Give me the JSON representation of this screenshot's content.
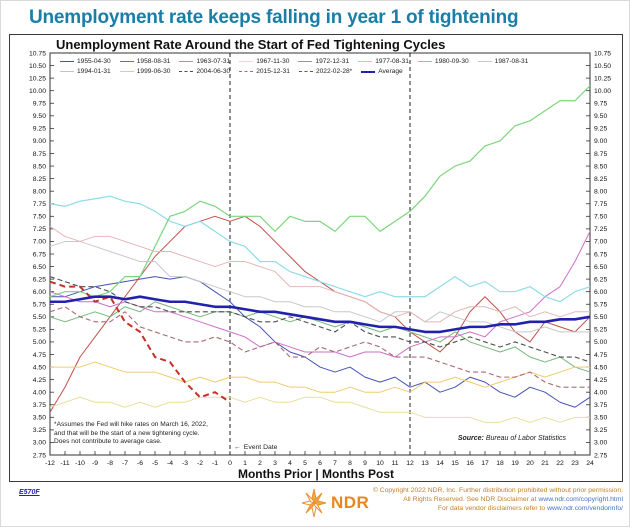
{
  "header": {
    "title": "Unemployment rate keeps falling in year 1 of tightening",
    "accent_color": "#1a7ea6"
  },
  "chart": {
    "title": "Unemployment Rate Around the Start of Fed Tightening Cycles",
    "footnote": "*Assumes the Fed will hike rates on March 16, 2022,\nand that will be the start of a new tightening cycle.\nDoes not contribute to average case.",
    "source_label": "Source:",
    "source_text": "Bureau of Labor Statistics",
    "event_arrow": "←",
    "event_date_label": "Event Date",
    "xlabel": "Months Prior | Months Post"
  },
  "chart_data": {
    "type": "line",
    "x_range": [
      -12,
      24
    ],
    "x_tick_step": 1,
    "ylim": [
      2.75,
      10.75
    ],
    "y_tick_step": 0.25,
    "event_lines_x": [
      0,
      12
    ],
    "grid": false,
    "legend_position": "top-inside",
    "series": [
      {
        "name": "1955-04-30",
        "color": "#4553b4",
        "dash": false,
        "width": 1,
        "values": [
          5.9,
          5.9,
          6.0,
          6.1,
          6.15,
          6.2,
          6.25,
          6.3,
          6.25,
          6.3,
          6.2,
          6.0,
          5.8,
          5.5,
          5.3,
          5.0,
          4.8,
          4.7,
          4.5,
          4.4,
          4.5,
          4.3,
          4.2,
          4.3,
          4.1,
          4.2,
          4.0,
          4.1,
          4.3,
          4.2,
          4.0,
          3.9,
          4.1,
          4.0,
          3.8,
          3.7,
          3.9
        ]
      },
      {
        "name": "1958-08-31",
        "color": "#c0504a",
        "dash": false,
        "width": 1,
        "values": [
          3.6,
          4.1,
          4.7,
          5.1,
          5.5,
          5.9,
          6.3,
          6.7,
          7.0,
          7.3,
          7.4,
          7.5,
          7.4,
          7.5,
          7.3,
          7.0,
          6.7,
          6.4,
          6.2,
          6.0,
          5.9,
          5.8,
          5.6,
          5.5,
          5.2,
          5.0,
          4.8,
          5.1,
          5.6,
          5.9,
          5.6,
          5.2,
          5.0,
          5.4,
          5.3,
          5.2,
          5.5
        ]
      },
      {
        "name": "1963-07-31",
        "color": "#74b77a",
        "dash": false,
        "width": 1,
        "values": [
          5.5,
          5.4,
          5.5,
          5.6,
          5.5,
          5.7,
          5.6,
          5.8,
          5.7,
          5.6,
          5.5,
          5.6,
          5.6,
          5.5,
          5.6,
          5.5,
          5.4,
          5.5,
          5.4,
          5.3,
          5.4,
          5.3,
          5.2,
          5.3,
          5.2,
          5.1,
          5.0,
          5.2,
          5.0,
          4.9,
          4.8,
          4.9,
          4.7,
          4.6,
          4.7,
          4.5,
          4.4
        ]
      },
      {
        "name": "1967-11-30",
        "color": "#e9df9e",
        "dash": false,
        "width": 1,
        "values": [
          3.7,
          3.8,
          3.9,
          3.8,
          3.8,
          3.7,
          3.8,
          3.7,
          3.8,
          3.8,
          3.9,
          3.9,
          3.9,
          3.8,
          3.9,
          3.8,
          3.8,
          3.9,
          3.9,
          3.8,
          3.8,
          3.7,
          3.6,
          3.6,
          3.6,
          3.5,
          3.5,
          3.5,
          3.5,
          3.4,
          3.4,
          3.5,
          3.4,
          3.5,
          3.4,
          3.5,
          3.5
        ]
      },
      {
        "name": "1972-12-31",
        "color": "#cf6fc9",
        "dash": false,
        "width": 1,
        "values": [
          6.0,
          5.9,
          5.8,
          5.8,
          5.7,
          5.8,
          5.7,
          5.6,
          5.6,
          5.5,
          5.4,
          5.3,
          5.2,
          5.1,
          4.9,
          5.0,
          4.9,
          4.8,
          4.8,
          4.8,
          4.7,
          4.8,
          4.8,
          4.7,
          4.9,
          5.0,
          5.1,
          5.1,
          5.2,
          5.1,
          5.4,
          5.5,
          5.6,
          5.9,
          6.1,
          6.6,
          7.2
        ]
      },
      {
        "name": "1977-08-31",
        "color": "#8fdbe8",
        "dash": false,
        "width": 1.2,
        "values": [
          7.75,
          7.7,
          7.8,
          7.85,
          7.9,
          7.8,
          7.75,
          7.6,
          7.4,
          7.3,
          7.4,
          7.2,
          7.0,
          6.9,
          6.6,
          6.6,
          6.4,
          6.3,
          6.2,
          6.1,
          6.0,
          5.9,
          6.0,
          5.9,
          5.9,
          5.9,
          6.1,
          6.3,
          6.1,
          6.2,
          6.0,
          6.0,
          6.1,
          5.9,
          5.8,
          6.0,
          6.1
        ]
      },
      {
        "name": "1980-09-30",
        "color": "#7bd67b",
        "dash": false,
        "width": 1.2,
        "values": [
          5.9,
          6.0,
          6.0,
          5.9,
          6.0,
          6.3,
          6.3,
          6.9,
          7.5,
          7.6,
          7.8,
          7.7,
          7.5,
          7.5,
          7.5,
          7.2,
          7.5,
          7.4,
          7.4,
          7.2,
          7.5,
          7.5,
          7.2,
          7.4,
          7.6,
          7.9,
          8.3,
          8.5,
          8.6,
          8.9,
          9.0,
          9.3,
          9.4,
          9.6,
          9.8,
          9.8,
          10.1
        ]
      },
      {
        "name": "1987-08-31",
        "color": "#c6c8ca",
        "dash": false,
        "width": 1,
        "values": [
          6.9,
          7.0,
          7.0,
          6.9,
          6.8,
          6.7,
          6.6,
          6.6,
          6.3,
          6.3,
          6.2,
          6.1,
          6.0,
          5.9,
          5.9,
          5.8,
          5.8,
          5.7,
          5.7,
          5.6,
          5.6,
          5.5,
          5.4,
          5.6,
          5.6,
          5.4,
          5.6,
          5.5,
          5.4,
          5.4,
          5.3,
          5.2,
          5.2,
          5.3,
          5.2,
          5.2,
          5.2
        ]
      },
      {
        "name": "1994-01-31",
        "color": "#e3b7b4",
        "dash": false,
        "width": 1,
        "values": [
          7.3,
          7.1,
          7.0,
          7.1,
          7.1,
          7.0,
          6.9,
          6.8,
          6.8,
          6.7,
          6.6,
          6.5,
          6.6,
          6.6,
          6.5,
          6.4,
          6.1,
          6.1,
          6.1,
          6.0,
          5.9,
          5.8,
          5.6,
          5.5,
          5.6,
          5.4,
          5.4,
          5.6,
          5.7,
          5.7,
          5.6,
          5.7,
          5.5,
          5.6,
          5.5,
          5.6,
          5.6
        ]
      },
      {
        "name": "1999-06-30",
        "color": "#f0cb70",
        "dash": false,
        "width": 1,
        "values": [
          4.5,
          4.5,
          4.5,
          4.6,
          4.5,
          4.4,
          4.4,
          4.4,
          4.3,
          4.2,
          4.3,
          4.2,
          4.3,
          4.3,
          4.2,
          4.2,
          4.1,
          4.1,
          4.0,
          4.0,
          4.1,
          4.0,
          4.0,
          4.1,
          4.0,
          4.2,
          4.2,
          4.3,
          4.2,
          4.1,
          4.2,
          4.3,
          4.4,
          4.3,
          4.4,
          4.5,
          4.5
        ]
      },
      {
        "name": "2004-06-30",
        "color": "#4d4d49",
        "dash": true,
        "width": 1.1,
        "values": [
          6.3,
          6.2,
          6.1,
          6.1,
          6.0,
          5.8,
          5.7,
          5.7,
          5.6,
          5.6,
          5.6,
          5.6,
          5.6,
          5.5,
          5.4,
          5.4,
          5.5,
          5.4,
          5.3,
          5.2,
          5.4,
          5.2,
          5.1,
          5.1,
          5.0,
          5.0,
          4.9,
          5.0,
          5.1,
          5.0,
          4.9,
          5.0,
          4.9,
          4.8,
          4.7,
          4.7,
          4.6
        ]
      },
      {
        "name": "2015-12-31",
        "color": "#a86a74",
        "dash": true,
        "width": 1.1,
        "values": [
          5.6,
          5.7,
          5.5,
          5.4,
          5.4,
          5.6,
          5.3,
          5.2,
          5.1,
          5.0,
          5.0,
          5.1,
          5.0,
          4.8,
          4.9,
          5.0,
          4.7,
          4.7,
          4.9,
          4.8,
          4.9,
          5.0,
          4.9,
          4.7,
          4.7,
          4.7,
          4.6,
          4.5,
          4.4,
          4.4,
          4.3,
          4.3,
          4.4,
          4.2,
          4.1,
          4.1,
          4.1
        ]
      },
      {
        "name": "2022-02-28*",
        "color": "#c63028",
        "dash": true,
        "width": 2,
        "values": [
          6.2,
          6.1,
          6.1,
          5.8,
          5.9,
          5.4,
          5.2,
          4.7,
          4.6,
          4.2,
          3.9,
          4.0,
          3.8,
          null,
          null,
          null,
          null,
          null,
          null,
          null,
          null,
          null,
          null,
          null,
          null,
          null,
          null,
          null,
          null,
          null,
          null,
          null,
          null,
          null,
          null,
          null,
          null
        ]
      },
      {
        "name": "Average",
        "color": "#2121ad",
        "dash": false,
        "width": 2.6,
        "values": [
          5.8,
          5.8,
          5.85,
          5.9,
          5.9,
          5.85,
          5.9,
          5.85,
          5.8,
          5.8,
          5.75,
          5.7,
          5.7,
          5.65,
          5.6,
          5.6,
          5.55,
          5.5,
          5.45,
          5.4,
          5.4,
          5.35,
          5.3,
          5.3,
          5.25,
          5.2,
          5.2,
          5.25,
          5.3,
          5.3,
          5.35,
          5.35,
          5.4,
          5.4,
          5.45,
          5.45,
          5.5
        ]
      }
    ]
  },
  "footer": {
    "doc_id": "E570F",
    "brand": "NDR",
    "copyright": {
      "line1": "© Copyright 2022 NDR, Inc. Further distribution prohibited without prior permission.",
      "line2_prefix": "All Rights Reserved. See NDR Disclaimer at ",
      "line2_link": "www.ndr.com/copyright.html",
      "line3_prefix": "For data vendor disclaimers refer to ",
      "line3_link": "www.ndr.com/vendorinfo/"
    }
  }
}
